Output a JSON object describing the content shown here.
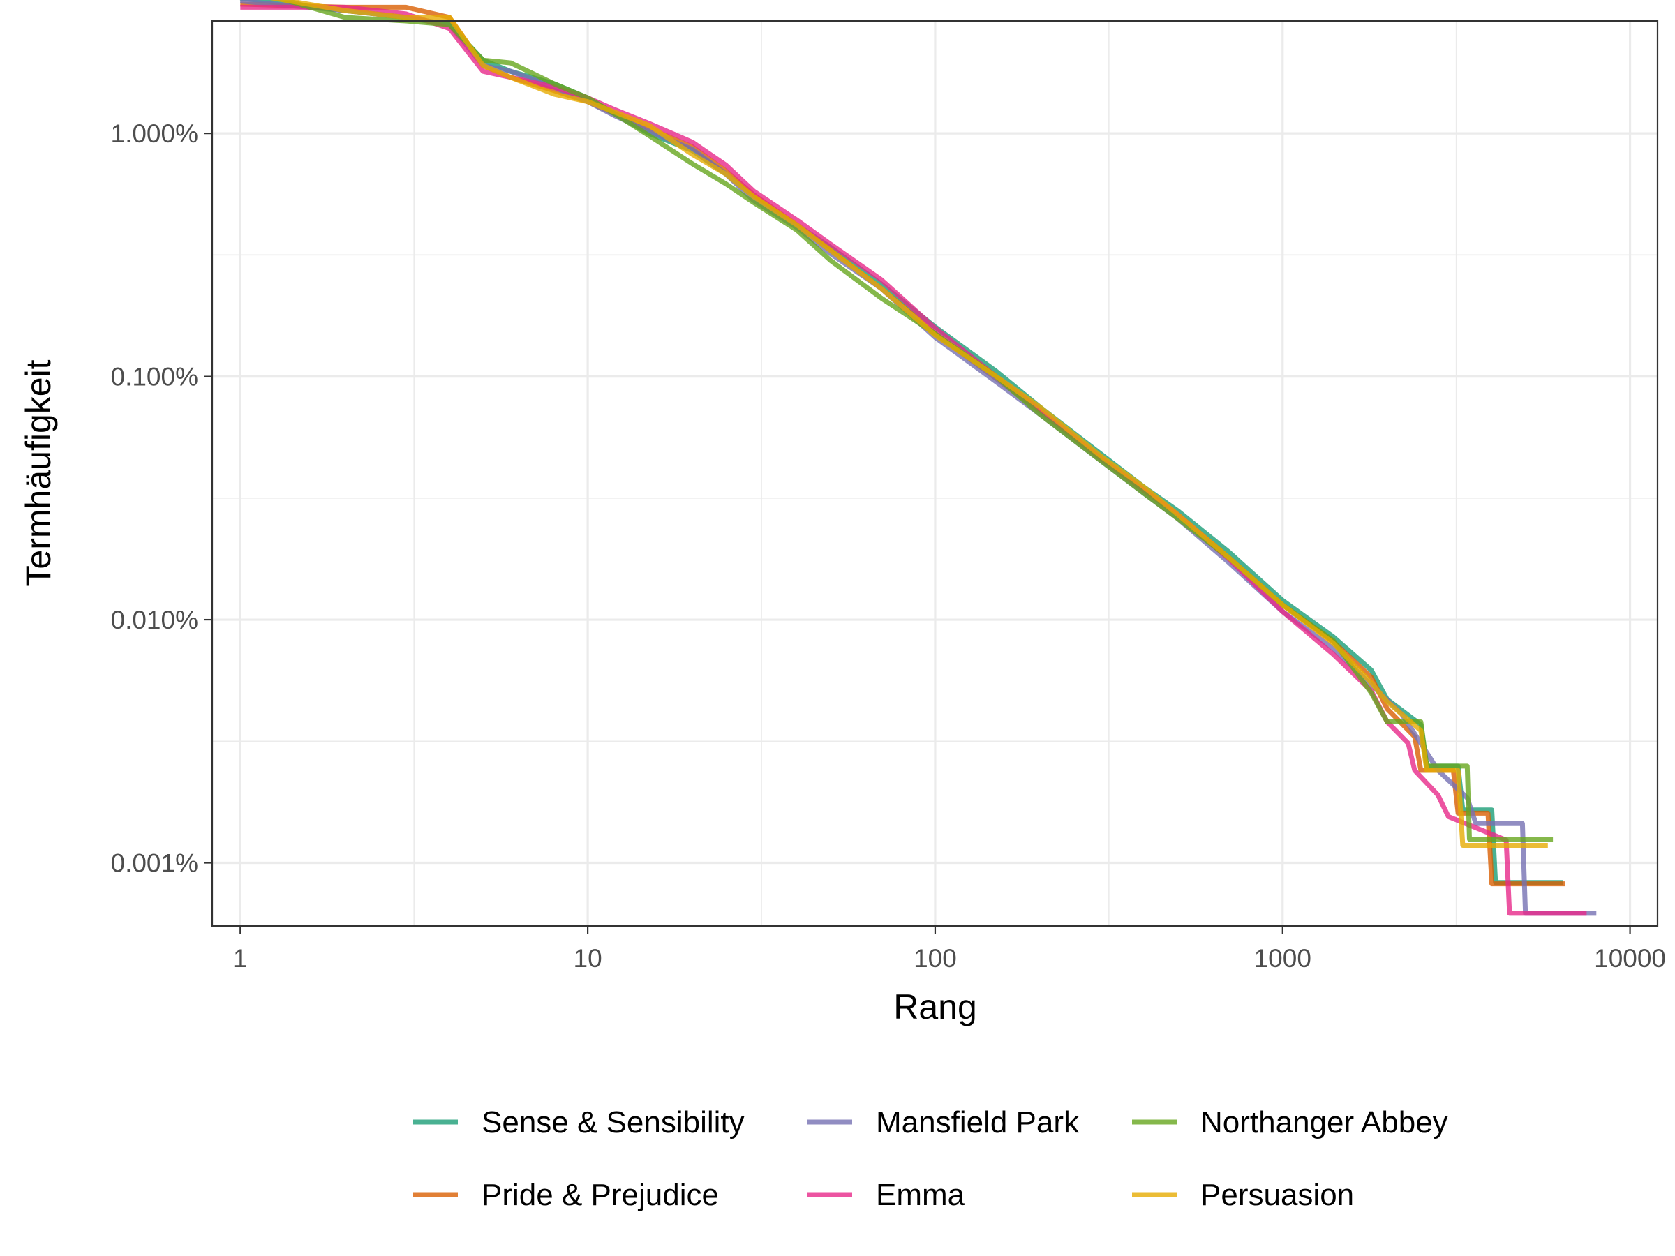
{
  "chart_data": {
    "type": "line",
    "title": "",
    "xlabel": "Rang",
    "ylabel": "Termhäufigkeit",
    "x_scale": "log10",
    "y_scale": "log10",
    "xlim": [
      0.83,
      12000
    ],
    "ylim": [
      5.5e-06,
      0.029
    ],
    "x_ticks": [
      {
        "value": 1,
        "label": "1"
      },
      {
        "value": 10,
        "label": "10"
      },
      {
        "value": 100,
        "label": "100"
      },
      {
        "value": 1000,
        "label": "1000"
      },
      {
        "value": 10000,
        "label": "10000"
      }
    ],
    "y_ticks": [
      {
        "value": 0.01,
        "label": "1.000%"
      },
      {
        "value": 0.001,
        "label": "0.100%"
      },
      {
        "value": 0.0001,
        "label": "0.010%"
      },
      {
        "value": 1e-05,
        "label": "0.001%"
      }
    ],
    "grid": true,
    "legend_position": "bottom",
    "series": [
      {
        "name": "Sense & Sensibility",
        "color": "#1B9E77",
        "points": [
          [
            1,
            0.036
          ],
          [
            2,
            0.032
          ],
          [
            3,
            0.03
          ],
          [
            4,
            0.028
          ],
          [
            5,
            0.02
          ],
          [
            6,
            0.018
          ],
          [
            8,
            0.016
          ],
          [
            10,
            0.014
          ],
          [
            12,
            0.012
          ],
          [
            15,
            0.01
          ],
          [
            20,
            0.0085
          ],
          [
            25,
            0.0068
          ],
          [
            30,
            0.0055
          ],
          [
            40,
            0.0042
          ],
          [
            50,
            0.0034
          ],
          [
            70,
            0.0024
          ],
          [
            100,
            0.0016
          ],
          [
            150,
            0.00105
          ],
          [
            200,
            0.00075
          ],
          [
            300,
            0.00048
          ],
          [
            400,
            0.00035
          ],
          [
            500,
            0.00028
          ],
          [
            700,
            0.00019
          ],
          [
            1000,
            0.00012
          ],
          [
            1400,
            8.5e-05
          ],
          [
            1800,
            6.2e-05
          ],
          [
            2000,
            4.7e-05
          ],
          [
            2500,
            3.7e-05
          ],
          [
            2600,
            2.5e-05
          ],
          [
            3200,
            2.5e-05
          ],
          [
            3300,
            1.65e-05
          ],
          [
            4000,
            1.65e-05
          ],
          [
            4100,
            8.3e-06
          ],
          [
            6400,
            8.3e-06
          ]
        ]
      },
      {
        "name": "Pride & Prejudice",
        "color": "#D95F02",
        "points": [
          [
            1,
            0.034
          ],
          [
            2,
            0.033
          ],
          [
            3,
            0.033
          ],
          [
            4,
            0.03
          ],
          [
            5,
            0.019
          ],
          [
            6,
            0.017
          ],
          [
            8,
            0.015
          ],
          [
            10,
            0.0135
          ],
          [
            12,
            0.012
          ],
          [
            15,
            0.0105
          ],
          [
            20,
            0.0088
          ],
          [
            25,
            0.007
          ],
          [
            30,
            0.0056
          ],
          [
            40,
            0.0042
          ],
          [
            50,
            0.0033
          ],
          [
            70,
            0.0023
          ],
          [
            100,
            0.0015
          ],
          [
            150,
            0.00098
          ],
          [
            200,
            0.00072
          ],
          [
            300,
            0.00046
          ],
          [
            400,
            0.00034
          ],
          [
            500,
            0.00027
          ],
          [
            700,
            0.00018
          ],
          [
            1000,
            0.000115
          ],
          [
            1400,
            8.1e-05
          ],
          [
            1800,
            5.8e-05
          ],
          [
            2000,
            4.3e-05
          ],
          [
            2400,
            3.3e-05
          ],
          [
            2500,
            2.4e-05
          ],
          [
            3100,
            2.4e-05
          ],
          [
            3200,
            1.6e-05
          ],
          [
            3900,
            1.6e-05
          ],
          [
            4000,
            8.2e-06
          ],
          [
            6500,
            8.2e-06
          ]
        ]
      },
      {
        "name": "Mansfield Park",
        "color": "#7570B3",
        "points": [
          [
            1,
            0.035
          ],
          [
            2,
            0.032
          ],
          [
            3,
            0.03
          ],
          [
            4,
            0.028
          ],
          [
            5,
            0.019
          ],
          [
            6,
            0.018
          ],
          [
            8,
            0.0155
          ],
          [
            10,
            0.0135
          ],
          [
            12,
            0.0118
          ],
          [
            15,
            0.0102
          ],
          [
            20,
            0.0086
          ],
          [
            25,
            0.0068
          ],
          [
            30,
            0.0053
          ],
          [
            40,
            0.0041
          ],
          [
            50,
            0.0032
          ],
          [
            70,
            0.0023
          ],
          [
            100,
            0.00145
          ],
          [
            150,
            0.00095
          ],
          [
            200,
            0.0007
          ],
          [
            300,
            0.00045
          ],
          [
            400,
            0.00033
          ],
          [
            500,
            0.00026
          ],
          [
            700,
            0.000172
          ],
          [
            1000,
            0.000108
          ],
          [
            1400,
            7.6e-05
          ],
          [
            1800,
            5.4e-05
          ],
          [
            2200,
            4.1e-05
          ],
          [
            2500,
            3.1e-05
          ],
          [
            2800,
            2.4e-05
          ],
          [
            3400,
            1.85e-05
          ],
          [
            3600,
            1.45e-05
          ],
          [
            4900,
            1.45e-05
          ],
          [
            5000,
            6.2e-06
          ],
          [
            8000,
            6.2e-06
          ]
        ]
      },
      {
        "name": "Emma",
        "color": "#E7298A",
        "points": [
          [
            1,
            0.033
          ],
          [
            2,
            0.033
          ],
          [
            3,
            0.031
          ],
          [
            4,
            0.027
          ],
          [
            5,
            0.018
          ],
          [
            6,
            0.017
          ],
          [
            8,
            0.0155
          ],
          [
            10,
            0.014
          ],
          [
            12,
            0.0125
          ],
          [
            15,
            0.011
          ],
          [
            20,
            0.0092
          ],
          [
            25,
            0.0074
          ],
          [
            30,
            0.0058
          ],
          [
            40,
            0.0044
          ],
          [
            50,
            0.0035
          ],
          [
            70,
            0.0025
          ],
          [
            100,
            0.00158
          ],
          [
            150,
            0.001
          ],
          [
            200,
            0.00073
          ],
          [
            300,
            0.00046
          ],
          [
            400,
            0.00034
          ],
          [
            500,
            0.00027
          ],
          [
            700,
            0.000178
          ],
          [
            1000,
            0.000108
          ],
          [
            1400,
            7.2e-05
          ],
          [
            1800,
            5.1e-05
          ],
          [
            2000,
            3.8e-05
          ],
          [
            2300,
            3.1e-05
          ],
          [
            2400,
            2.4e-05
          ],
          [
            2800,
            1.9e-05
          ],
          [
            3000,
            1.55e-05
          ],
          [
            4400,
            1.24e-05
          ],
          [
            4500,
            6.2e-06
          ],
          [
            7500,
            6.2e-06
          ]
        ]
      },
      {
        "name": "Northanger Abbey",
        "color": "#66A61E",
        "points": [
          [
            1,
            0.04
          ],
          [
            2,
            0.03
          ],
          [
            3,
            0.029
          ],
          [
            4,
            0.028
          ],
          [
            5,
            0.02
          ],
          [
            6,
            0.0195
          ],
          [
            8,
            0.016
          ],
          [
            10,
            0.014
          ],
          [
            12,
            0.012
          ],
          [
            15,
            0.0098
          ],
          [
            20,
            0.0075
          ],
          [
            25,
            0.0062
          ],
          [
            30,
            0.0052
          ],
          [
            40,
            0.004
          ],
          [
            50,
            0.003
          ],
          [
            70,
            0.0021
          ],
          [
            100,
            0.0015
          ],
          [
            150,
            0.001
          ],
          [
            200,
            0.0007
          ],
          [
            300,
            0.00045
          ],
          [
            400,
            0.00033
          ],
          [
            500,
            0.00026
          ],
          [
            700,
            0.00018
          ],
          [
            1000,
            0.000115
          ],
          [
            1400,
            8.2e-05
          ],
          [
            1600,
            6.3e-05
          ],
          [
            1800,
            5e-05
          ],
          [
            2000,
            3.8e-05
          ],
          [
            2500,
            3.8e-05
          ],
          [
            2600,
            2.5e-05
          ],
          [
            3400,
            2.5e-05
          ],
          [
            3450,
            1.25e-05
          ],
          [
            6000,
            1.25e-05
          ]
        ]
      },
      {
        "name": "Persuasion",
        "color": "#E6AB02",
        "points": [
          [
            1,
            0.038
          ],
          [
            2,
            0.032
          ],
          [
            3,
            0.03
          ],
          [
            4,
            0.03
          ],
          [
            5,
            0.019
          ],
          [
            6,
            0.017
          ],
          [
            8,
            0.0145
          ],
          [
            10,
            0.0135
          ],
          [
            12,
            0.0122
          ],
          [
            15,
            0.0108
          ],
          [
            20,
            0.0082
          ],
          [
            25,
            0.0068
          ],
          [
            30,
            0.0055
          ],
          [
            40,
            0.0042
          ],
          [
            50,
            0.0033
          ],
          [
            70,
            0.0023
          ],
          [
            100,
            0.00148
          ],
          [
            150,
            0.001
          ],
          [
            200,
            0.00075
          ],
          [
            300,
            0.00047
          ],
          [
            400,
            0.00035
          ],
          [
            500,
            0.00027
          ],
          [
            700,
            0.00018
          ],
          [
            1000,
            0.000115
          ],
          [
            1400,
            8e-05
          ],
          [
            1800,
            5.5e-05
          ],
          [
            2000,
            4.6e-05
          ],
          [
            2500,
            3.5e-05
          ],
          [
            2600,
            2.4e-05
          ],
          [
            3200,
            2.4e-05
          ],
          [
            3300,
            1.18e-05
          ],
          [
            5800,
            1.18e-05
          ]
        ]
      }
    ]
  }
}
